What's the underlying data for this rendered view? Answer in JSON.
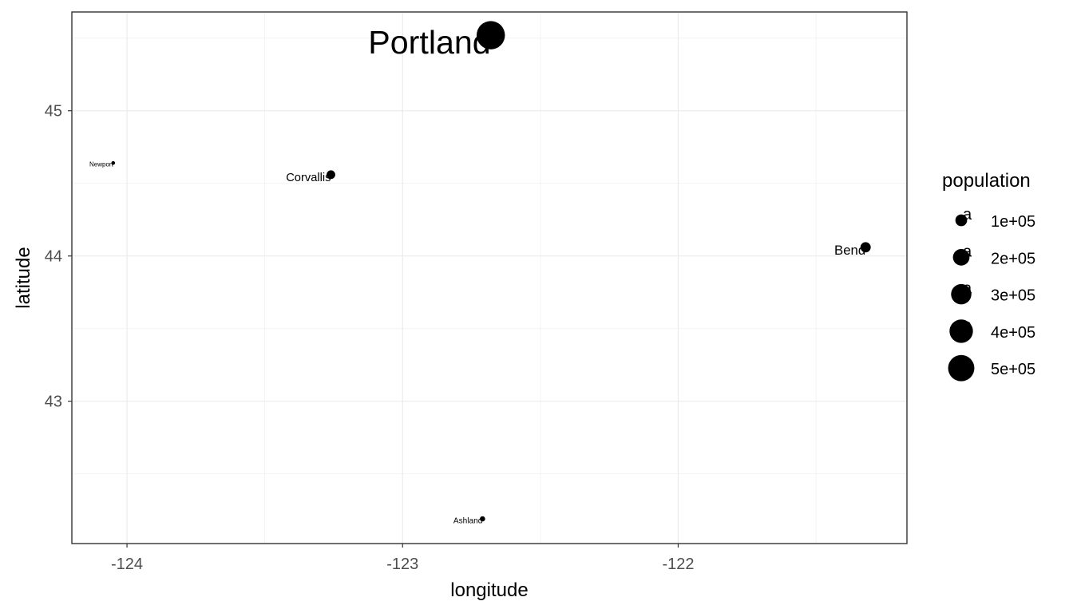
{
  "chart_data": {
    "type": "scatter",
    "title": "",
    "xlabel": "longitude",
    "ylabel": "latitude",
    "xlim": [
      -124.2,
      -121.17
    ],
    "ylim": [
      42.02,
      45.68
    ],
    "x_ticks": [
      -124,
      -123,
      -122
    ],
    "x_tick_labels": [
      "-124",
      "-123",
      "-122"
    ],
    "x_minor_ticks": [
      -123.5,
      -122.5,
      -121.5
    ],
    "y_ticks": [
      43,
      44,
      45
    ],
    "y_tick_labels": [
      "43",
      "44",
      "45"
    ],
    "y_minor_ticks": [
      42.5,
      43.5,
      44.5,
      45.5
    ],
    "grid": true,
    "points": [
      {
        "label": "Portland",
        "x": -122.68,
        "y": 45.52,
        "population": 583776
      },
      {
        "label": "Corvallis",
        "x": -123.26,
        "y": 44.56,
        "population": 54462
      },
      {
        "label": "Newport",
        "x": -124.05,
        "y": 44.64,
        "population": 9989
      },
      {
        "label": "Bend",
        "x": -121.32,
        "y": 44.06,
        "population": 76639
      },
      {
        "label": "Ashland",
        "x": -122.71,
        "y": 42.19,
        "population": 20062
      }
    ],
    "legend": {
      "title": "population",
      "placement": "right",
      "entries": [
        {
          "label": "1e+05",
          "value": 100000
        },
        {
          "label": "2e+05",
          "value": 200000
        },
        {
          "label": "3e+05",
          "value": 300000
        },
        {
          "label": "4e+05",
          "value": 400000
        },
        {
          "label": "5e+05",
          "value": 500000
        }
      ]
    },
    "point_color": "#000000",
    "panel_border_color": "#333333",
    "grid_color": "#ebebeb"
  }
}
